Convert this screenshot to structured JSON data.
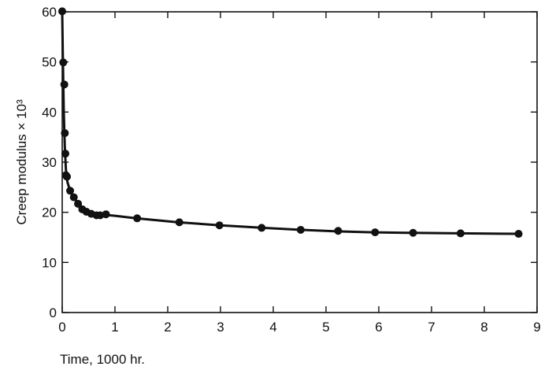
{
  "chart_data": {
    "type": "scatter",
    "title": "",
    "xlabel": "Time, 1000 hr.",
    "ylabel": "Creep modulus × 10³",
    "xlim": [
      0,
      9
    ],
    "ylim": [
      0,
      60
    ],
    "x_ticks": [
      "0",
      "1",
      "2",
      "3",
      "4",
      "5",
      "6",
      "7",
      "8",
      "9"
    ],
    "y_ticks": [
      "0",
      "10",
      "20",
      "30",
      "40",
      "50",
      "60"
    ],
    "grid": false,
    "legend": "none",
    "series": [
      {
        "style": "markers",
        "x": [
          0.0,
          0.02,
          0.04,
          0.05,
          0.06,
          0.07,
          0.09,
          0.15,
          0.22,
          0.3,
          0.38,
          0.46,
          0.55,
          0.65,
          0.72,
          0.83,
          1.42,
          2.22,
          2.98,
          3.78,
          4.52,
          5.23,
          5.93,
          6.65,
          7.55,
          8.65
        ],
        "y": [
          60.1,
          49.9,
          45.5,
          35.8,
          31.7,
          27.4,
          27.1,
          24.3,
          23.0,
          21.7,
          20.6,
          20.1,
          19.7,
          19.4,
          19.4,
          19.6,
          18.8,
          18.0,
          17.4,
          16.9,
          16.5,
          16.3,
          16.0,
          15.9,
          15.8,
          15.7
        ]
      },
      {
        "style": "line",
        "x": [
          0.0,
          0.01,
          0.03,
          0.05,
          0.07,
          0.1,
          0.15,
          0.22,
          0.3,
          0.4,
          0.5,
          0.6,
          0.7,
          0.8,
          1.0,
          1.4,
          2.2,
          3.0,
          3.8,
          4.5,
          5.2,
          5.9,
          6.6,
          7.5,
          8.65
        ],
        "y": [
          60.0,
          52.0,
          40.0,
          33.0,
          28.5,
          26.0,
          24.3,
          23.0,
          21.8,
          20.8,
          20.1,
          19.7,
          19.5,
          19.5,
          19.3,
          18.8,
          18.0,
          17.4,
          16.9,
          16.5,
          16.2,
          16.0,
          15.9,
          15.8,
          15.7
        ]
      }
    ]
  }
}
